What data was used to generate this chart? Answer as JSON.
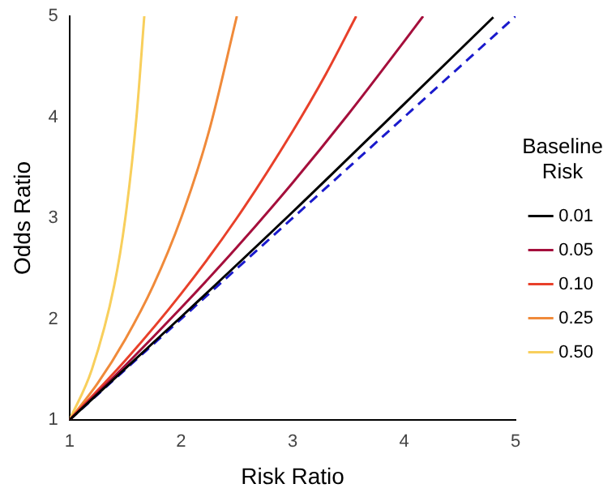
{
  "chart_data": {
    "type": "line",
    "xlabel": "Risk Ratio",
    "ylabel": "Odds Ratio",
    "legend_title": "Baseline Risk",
    "legend": "right",
    "grid": false,
    "marker": "none",
    "xlim": [
      1,
      5
    ],
    "ylim": [
      1,
      5
    ],
    "xticks": [
      1,
      2,
      3,
      4,
      5
    ],
    "yticks": [
      1,
      2,
      3,
      4,
      5
    ],
    "series": [
      {
        "name": "0.01",
        "color": "#000000",
        "x": [
          1,
          2,
          3,
          4,
          4.8
        ],
        "values": [
          1,
          2.02,
          3.06,
          4.13,
          4.99
        ]
      },
      {
        "name": "0.05",
        "color": "#a50f3c",
        "x": [
          1,
          1.5,
          2,
          2.5,
          3,
          3.5,
          4,
          4.17
        ],
        "values": [
          1,
          1.54,
          2.11,
          2.71,
          3.35,
          4.03,
          4.75,
          5
        ]
      },
      {
        "name": "0.10",
        "color": "#e8402a",
        "x": [
          1,
          1.5,
          2,
          2.5,
          3,
          3.3,
          3.57
        ],
        "values": [
          1,
          1.59,
          2.25,
          3,
          3.86,
          4.43,
          5
        ]
      },
      {
        "name": "0.25",
        "color": "#f08a3a",
        "x": [
          1,
          1.25,
          1.5,
          1.75,
          2,
          2.25,
          2.5
        ],
        "values": [
          1,
          1.36,
          1.8,
          2.33,
          3,
          3.86,
          5
        ]
      },
      {
        "name": "0.50",
        "color": "#f8cf5c",
        "x": [
          1,
          1.2,
          1.4,
          1.5,
          1.6,
          1.67
        ],
        "values": [
          1,
          1.5,
          2.33,
          3,
          4,
          5
        ]
      },
      {
        "color": "#1a1acc",
        "line_style": "dashed",
        "x": [
          1,
          5
        ],
        "values": [
          1,
          5
        ]
      }
    ]
  }
}
